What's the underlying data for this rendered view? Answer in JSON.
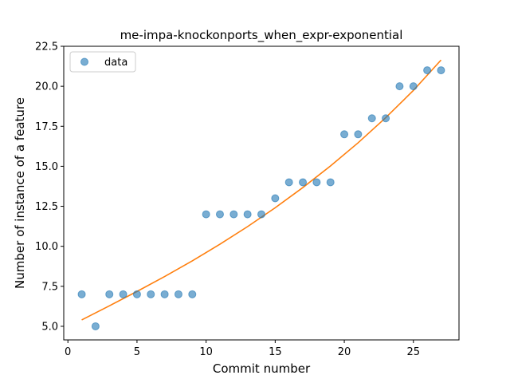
{
  "chart_data": {
    "type": "scatter",
    "title": "me-impa-knockonports_when_expr-exponential",
    "xlabel": "Commit number",
    "ylabel": "Number of instance of a feature",
    "xlim": [
      -0.3,
      28.3
    ],
    "ylim": [
      4.15,
      22.5
    ],
    "x_ticks": [
      0,
      5,
      10,
      15,
      20,
      25
    ],
    "y_ticks": [
      5.0,
      7.5,
      10.0,
      12.5,
      15.0,
      17.5,
      20.0,
      22.5
    ],
    "y_tick_labels": [
      "5.0",
      "7.5",
      "10.0",
      "12.5",
      "15.0",
      "17.5",
      "20.0",
      "22.5"
    ],
    "grid": false,
    "legend_position": "top-left",
    "series": [
      {
        "name": "data",
        "kind": "points",
        "color": "#1f77b4",
        "x": [
          1,
          2,
          3,
          4,
          5,
          6,
          7,
          8,
          9,
          10,
          11,
          12,
          13,
          14,
          15,
          16,
          17,
          18,
          19,
          20,
          21,
          22,
          23,
          24,
          25,
          26,
          27
        ],
        "y": [
          7,
          5,
          7,
          7,
          7,
          7,
          7,
          7,
          7,
          12,
          12,
          12,
          12,
          12,
          13,
          14,
          14,
          14,
          14,
          17,
          17,
          18,
          18,
          20,
          20,
          21,
          21
        ]
      },
      {
        "kind": "fit-line",
        "color": "#ff7f0e",
        "x": [
          1,
          3,
          5,
          7,
          9,
          11,
          13,
          15,
          17,
          19,
          21,
          23,
          25,
          27
        ],
        "y": [
          5.4,
          6.28,
          7.18,
          8.11,
          9.09,
          10.13,
          11.23,
          12.41,
          13.67,
          15.02,
          16.47,
          18.04,
          19.74,
          21.64
        ]
      }
    ]
  }
}
